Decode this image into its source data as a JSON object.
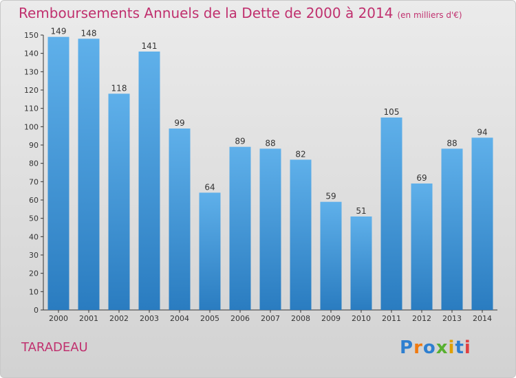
{
  "title": "Remboursements Annuels de la Dette de 2000 à 2014",
  "subtitle": "(en milliers d'€)",
  "commune": "TARADEAU",
  "logo": {
    "text": "Proxiti",
    "colors": [
      "#2e7fd0",
      "#f07a10",
      "#2e7fd0",
      "#58b030",
      "#e0a000",
      "#2e7fd0",
      "#e04040"
    ]
  },
  "colors": {
    "title": "#c0306e",
    "bar_top": "#5fb0ea",
    "bar_bottom": "#2a7cc0",
    "axis": "#333333"
  },
  "chart_data": {
    "type": "bar",
    "categories": [
      "2000",
      "2001",
      "2002",
      "2003",
      "2004",
      "2005",
      "2006",
      "2007",
      "2008",
      "2009",
      "2010",
      "2011",
      "2012",
      "2013",
      "2014"
    ],
    "values": [
      149,
      148,
      118,
      141,
      99,
      64,
      89,
      88,
      82,
      59,
      51,
      105,
      69,
      88,
      94
    ],
    "ylim": [
      0,
      150
    ],
    "yticks": [
      0,
      10,
      20,
      30,
      40,
      50,
      60,
      70,
      80,
      90,
      100,
      110,
      120,
      130,
      140,
      150
    ],
    "grid": false,
    "legend": "none"
  }
}
